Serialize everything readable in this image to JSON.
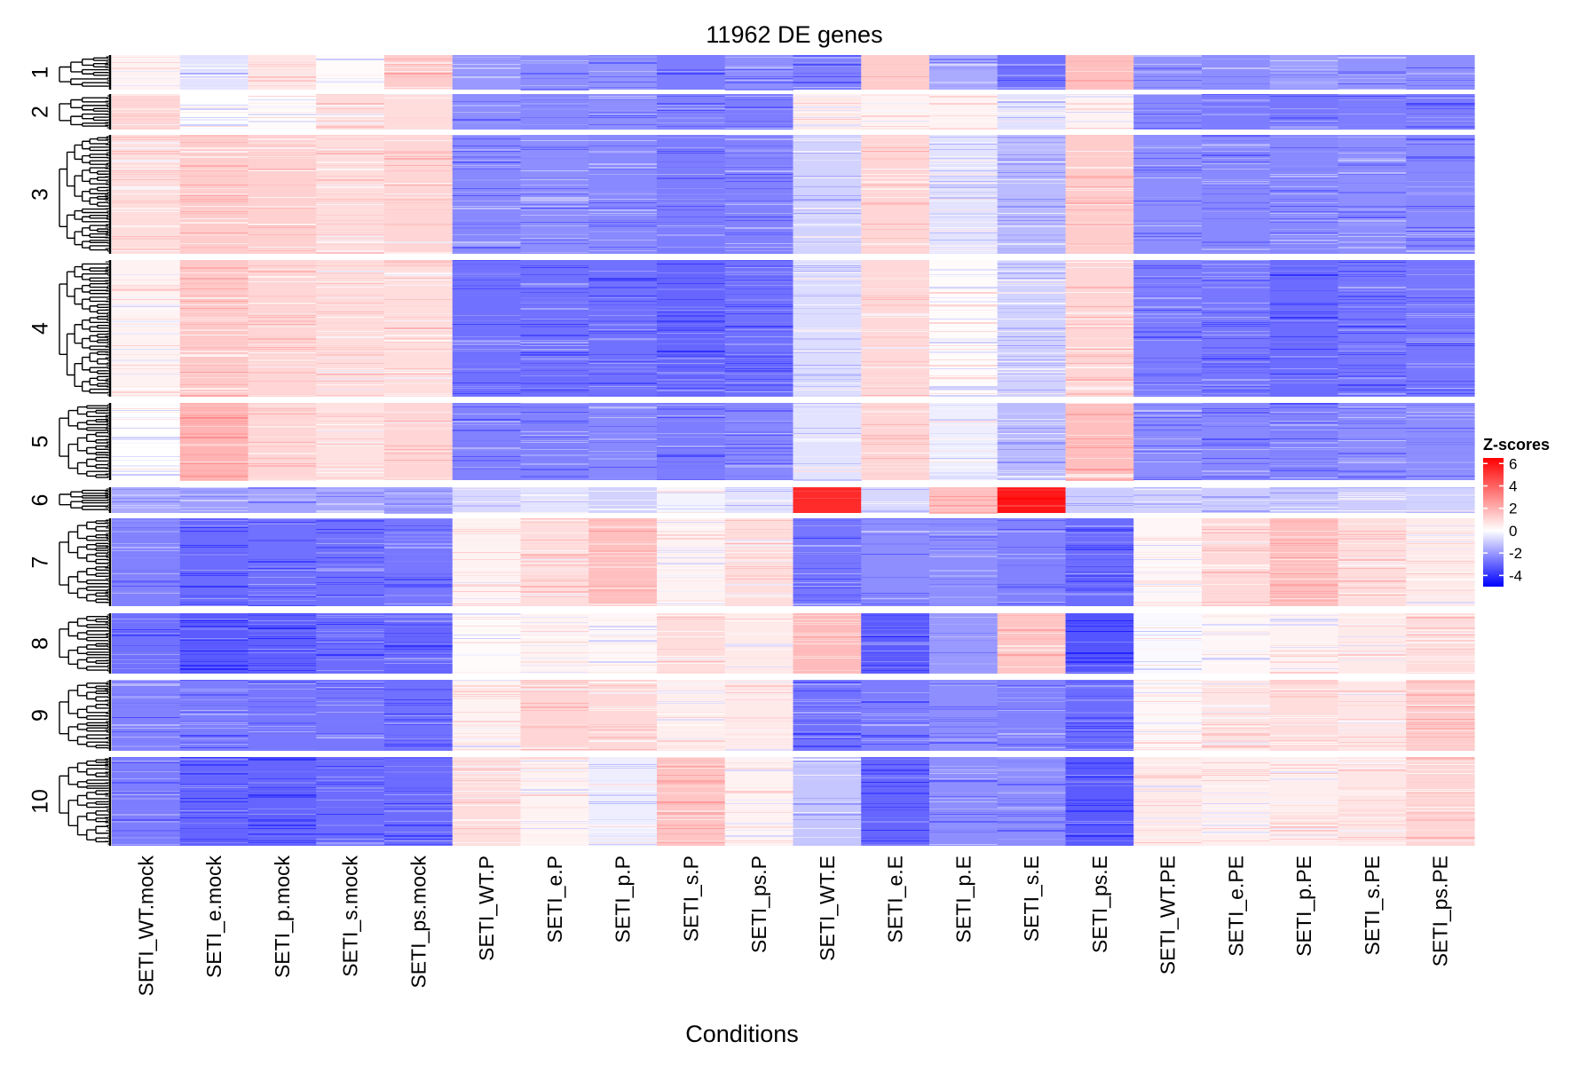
{
  "chart_data": {
    "type": "heatmap",
    "title": "11962 DE genes",
    "xlabel": "Conditions",
    "ylabel": "",
    "columns": [
      "SETI_WT.mock",
      "SETI_e.mock",
      "SETI_p.mock",
      "SETI_s.mock",
      "SETI_ps.mock",
      "SETI_WT.P",
      "SETI_e.P",
      "SETI_p.P",
      "SETI_s.P",
      "SETI_ps.P",
      "SETI_WT.E",
      "SETI_e.E",
      "SETI_p.E",
      "SETI_s.E",
      "SETI_ps.E",
      "SETI_WT.PE",
      "SETI_e.PE",
      "SETI_p.PE",
      "SETI_s.PE",
      "SETI_ps.PE"
    ],
    "clusters": [
      {
        "label": "1",
        "mean_z": [
          0.3,
          -0.5,
          0.6,
          0.1,
          1.2,
          -1.8,
          -2.0,
          -1.9,
          -2.3,
          -2.0,
          -2.2,
          1.2,
          -1.5,
          -2.5,
          1.5,
          -1.9,
          -2.0,
          -1.7,
          -1.9,
          -2.0
        ]
      },
      {
        "label": "2",
        "mean_z": [
          1.0,
          0.0,
          0.1,
          0.8,
          0.8,
          -2.0,
          -2.1,
          -2.0,
          -2.2,
          -2.3,
          0.5,
          0.3,
          0.3,
          -0.5,
          0.3,
          -2.1,
          -2.3,
          -2.4,
          -2.3,
          -2.3
        ]
      },
      {
        "label": "3",
        "mean_z": [
          0.8,
          1.2,
          1.1,
          0.8,
          1.0,
          -2.1,
          -2.0,
          -2.1,
          -2.3,
          -2.2,
          -0.8,
          1.0,
          -0.5,
          -1.2,
          1.2,
          -2.0,
          -2.1,
          -2.1,
          -2.0,
          -2.1
        ]
      },
      {
        "label": "4",
        "mean_z": [
          0.3,
          1.3,
          1.0,
          0.8,
          0.8,
          -2.5,
          -2.5,
          -2.5,
          -2.7,
          -2.5,
          -0.6,
          0.9,
          0.1,
          -0.8,
          1.0,
          -2.3,
          -2.4,
          -2.6,
          -2.4,
          -2.4
        ]
      },
      {
        "label": "5",
        "mean_z": [
          0.0,
          1.8,
          1.0,
          0.7,
          1.0,
          -2.2,
          -2.2,
          -2.1,
          -2.3,
          -2.1,
          -0.5,
          1.0,
          -0.3,
          -1.2,
          1.5,
          -2.0,
          -2.1,
          -2.2,
          -2.0,
          -2.0
        ]
      },
      {
        "label": "6",
        "mean_z": [
          -1.5,
          -1.7,
          -1.6,
          -1.6,
          -1.6,
          -0.7,
          -0.5,
          -0.8,
          -0.2,
          -0.5,
          5.0,
          -0.7,
          1.5,
          5.5,
          -0.9,
          -0.8,
          -0.9,
          -1.0,
          -0.9,
          -0.8
        ]
      },
      {
        "label": "7",
        "mean_z": [
          -2.2,
          -2.6,
          -2.5,
          -2.5,
          -2.4,
          0.3,
          0.8,
          1.5,
          0.3,
          0.8,
          -2.4,
          -2.0,
          -2.0,
          -2.2,
          -2.6,
          0.2,
          0.9,
          1.5,
          0.8,
          0.5
        ]
      },
      {
        "label": "8",
        "mean_z": [
          -2.5,
          -2.9,
          -2.8,
          -2.6,
          -2.7,
          0.1,
          0.3,
          0.2,
          0.8,
          0.5,
          1.6,
          -2.9,
          -1.8,
          1.4,
          -3.0,
          -0.1,
          0.2,
          0.3,
          0.5,
          0.8
        ]
      },
      {
        "label": "9",
        "mean_z": [
          -2.2,
          -2.3,
          -2.4,
          -2.4,
          -2.5,
          0.3,
          1.0,
          0.9,
          0.4,
          0.5,
          -2.5,
          -2.3,
          -2.0,
          -2.2,
          -2.6,
          0.2,
          0.6,
          0.8,
          0.6,
          1.2
        ]
      },
      {
        "label": "10",
        "mean_z": [
          -2.3,
          -2.7,
          -2.7,
          -2.6,
          -2.6,
          0.8,
          0.3,
          -0.3,
          1.4,
          0.3,
          -1.0,
          -2.7,
          -2.0,
          -2.0,
          -2.9,
          0.5,
          0.4,
          0.4,
          0.6,
          1.0
        ]
      }
    ],
    "legend": {
      "title": "Z-scores",
      "ticks": [
        6,
        4,
        2,
        0,
        -2,
        -4
      ],
      "range": [
        -5,
        6.5
      ],
      "colors": {
        "low": "#0000ff",
        "mid": "#ffffff",
        "high": "#ff0000"
      },
      "placement": "right"
    },
    "dendrogram": "rows"
  }
}
